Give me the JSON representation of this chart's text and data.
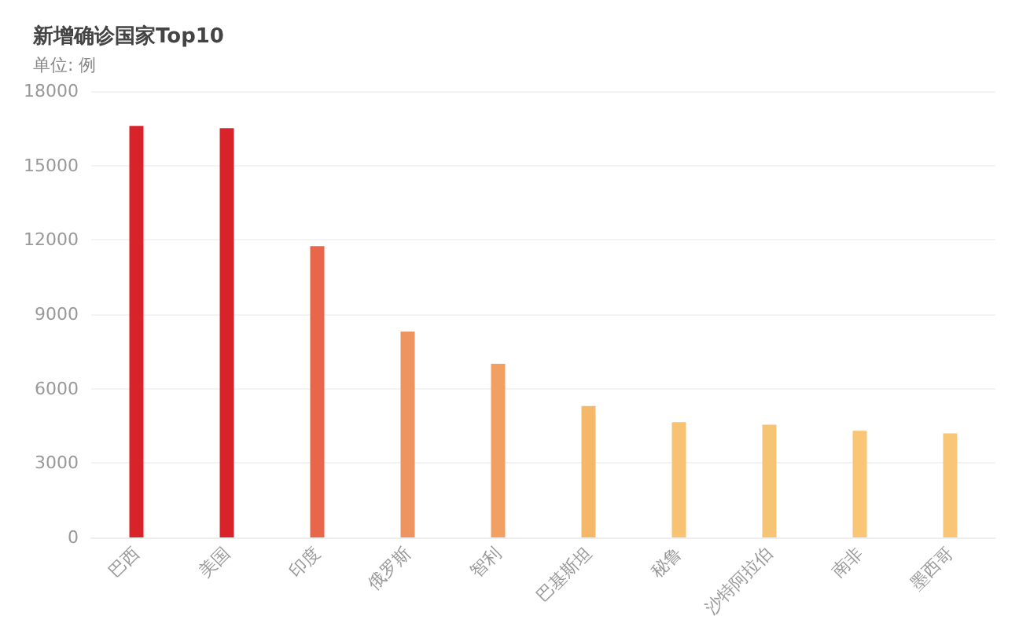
{
  "chart_data": {
    "type": "bar",
    "title": "新增确诊国家Top10",
    "subtitle": "单位: 例",
    "categories": [
      "巴西",
      "美国",
      "印度",
      "俄罗斯",
      "智利",
      "巴基斯坦",
      "秘鲁",
      "沙特阿拉伯",
      "南非",
      "墨西哥"
    ],
    "values": [
      16600,
      16500,
      11750,
      8300,
      7000,
      5300,
      4650,
      4550,
      4300,
      4200
    ],
    "colors": [
      "#d9232a",
      "#d9232a",
      "#e8674a",
      "#ee9460",
      "#f2a062",
      "#f5b869",
      "#f7c272",
      "#f7c374",
      "#f8c674",
      "#f8c676"
    ],
    "ylim": [
      0,
      18000
    ],
    "yticks": [
      0,
      3000,
      6000,
      9000,
      12000,
      15000,
      18000
    ],
    "grid": "y"
  }
}
